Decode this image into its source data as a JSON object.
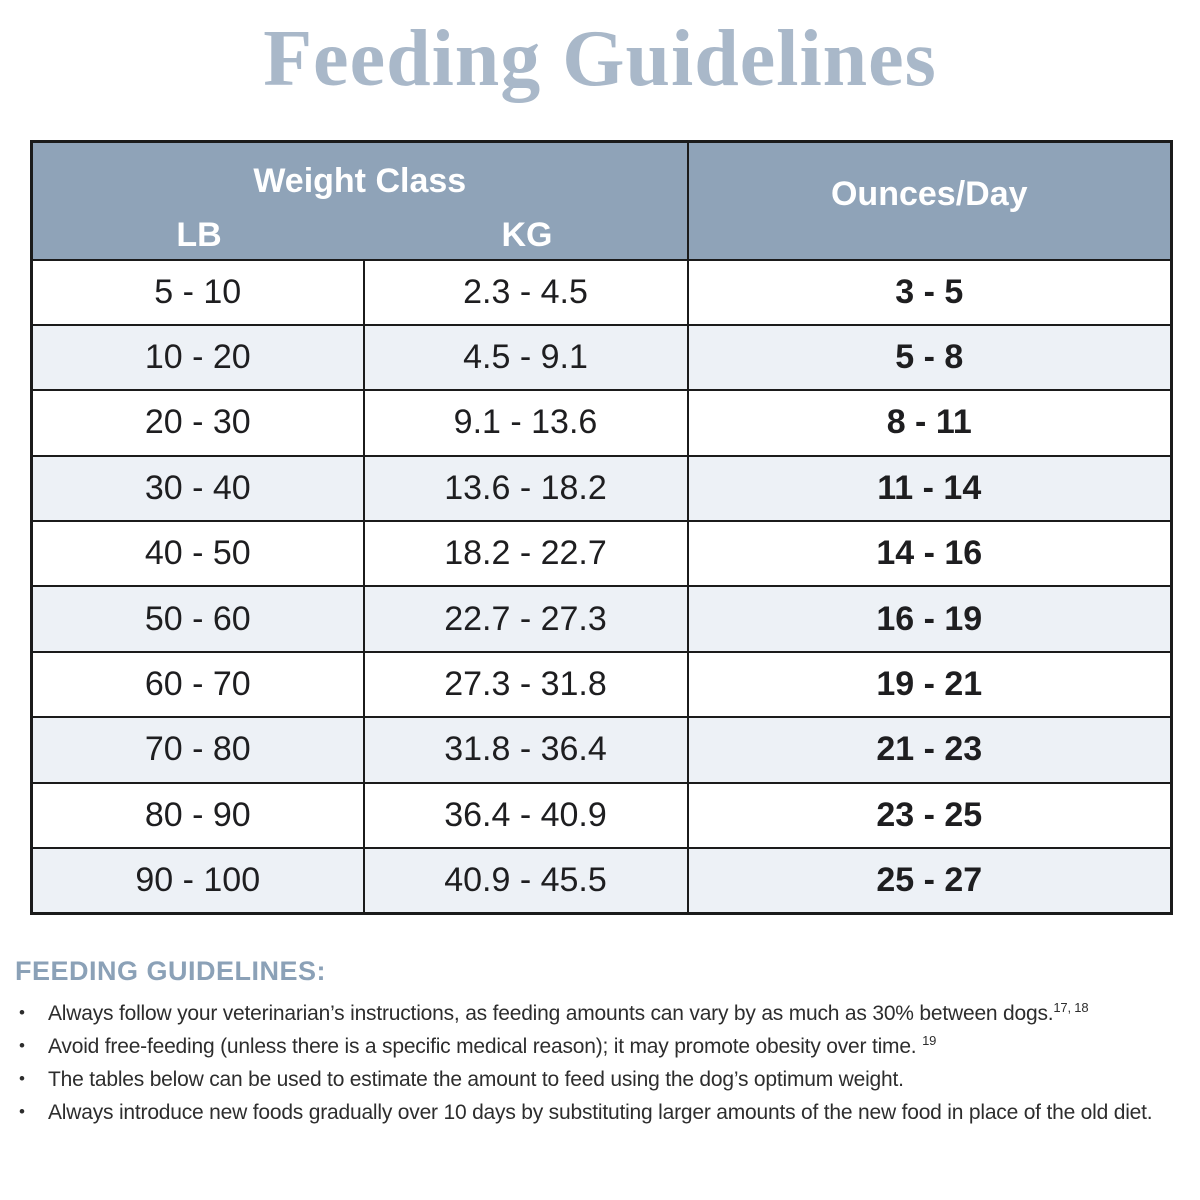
{
  "page": {
    "title": "Feeding Guidelines"
  },
  "table": {
    "header": {
      "weight_class": "Weight Class",
      "lb": "LB",
      "kg": "KG",
      "ounces": "Ounces/Day"
    },
    "rows": [
      {
        "lb": "5 - 10",
        "kg": "2.3 - 4.5",
        "oz": "3 - 5"
      },
      {
        "lb": "10 - 20",
        "kg": "4.5 - 9.1",
        "oz": "5 - 8"
      },
      {
        "lb": "20 - 30",
        "kg": "9.1 - 13.6",
        "oz": "8 - 11"
      },
      {
        "lb": "30 - 40",
        "kg": "13.6 - 18.2",
        "oz": "11 - 14"
      },
      {
        "lb": "40 - 50",
        "kg": "18.2 - 22.7",
        "oz": "14 - 16"
      },
      {
        "lb": "50 - 60",
        "kg": "22.7 - 27.3",
        "oz": "16 - 19"
      },
      {
        "lb": "60 - 70",
        "kg": "27.3 - 31.8",
        "oz": "19 - 21"
      },
      {
        "lb": "70 - 80",
        "kg": "31.8 - 36.4",
        "oz": "21 - 23"
      },
      {
        "lb": "80 - 90",
        "kg": "36.4 - 40.9",
        "oz": "23 - 25"
      },
      {
        "lb": "90 - 100",
        "kg": "40.9 - 45.5",
        "oz": "25 - 27"
      }
    ]
  },
  "notes": {
    "heading": "FEEDING GUIDELINES:",
    "bullets": [
      {
        "text": "Always follow your veterinarian’s instructions, as feeding amounts can vary by as much as 30% between dogs.",
        "sup": "17, 18"
      },
      {
        "text": "Avoid free-feeding (unless there is a specific medical reason); it may promote obesity over time. ",
        "sup": "19"
      },
      {
        "text": "The tables below can be used to estimate the amount to feed using the dog’s optimum weight."
      },
      {
        "text": "Always introduce new foods gradually over 10 days by substituting larger amounts of the new food in place of the old diet."
      }
    ]
  },
  "colors": {
    "title": "#a9b8c9",
    "header_bg": "#8fa3b8",
    "header_text": "#ffffff",
    "row_alt_bg": "#edf1f6",
    "table_border": "#1b1b1b",
    "notes_heading": "#8ba1b7",
    "body_text": "#2d2d2d"
  }
}
